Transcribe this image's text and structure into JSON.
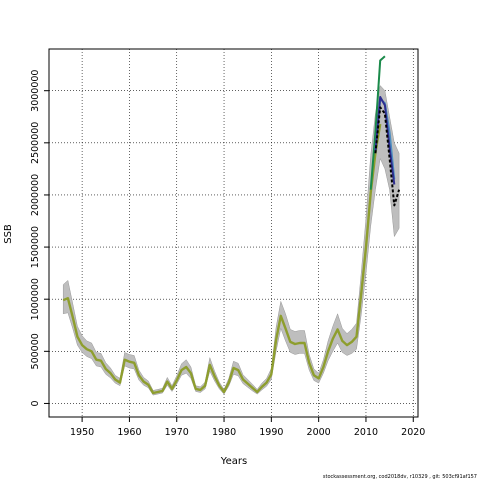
{
  "chart_data": {
    "type": "line",
    "title": "",
    "xlabel": "Years",
    "ylabel": "SSB",
    "xlim": [
      1943,
      2021
    ],
    "ylim": [
      -130000,
      3400000
    ],
    "x_ticks": [
      1950,
      1960,
      1970,
      1980,
      1990,
      2000,
      2010,
      2020
    ],
    "x_tick_labels": [
      "1950",
      "1960",
      "1970",
      "1980",
      "1990",
      "2000",
      "2010",
      "2020"
    ],
    "y_ticks": [
      0,
      500000,
      1000000,
      1500000,
      2000000,
      2500000,
      3000000
    ],
    "y_tick_labels": [
      "0",
      "500000",
      "1000000",
      "1500000",
      "2000000",
      "2500000",
      "3000000"
    ],
    "grid": true,
    "footnote": "stockassessment.org, cod2018dv, r10329 , git: 503cf91af157",
    "series": [
      {
        "color": "#8e9e2e",
        "x": [
          1946,
          1947,
          1948,
          1949,
          1950,
          1951,
          1952,
          1953,
          1954,
          1955,
          1956,
          1957,
          1958,
          1959,
          1960,
          1961,
          1962,
          1963,
          1964,
          1965,
          1966,
          1967,
          1968,
          1969,
          1970,
          1971,
          1972,
          1973,
          1974,
          1975,
          1976,
          1977,
          1978,
          1979,
          1980,
          1981,
          1982,
          1983,
          1984,
          1985,
          1986,
          1987,
          1988,
          1989,
          1990,
          1991,
          1992,
          1993,
          1994,
          1995,
          1996,
          1997,
          1998,
          1999,
          2000,
          2001,
          2002,
          2003,
          2004,
          2005,
          2006,
          2007,
          2008,
          2009,
          2010,
          2011,
          2012,
          2013
        ],
        "y": [
          990000,
          1010000,
          830000,
          640000,
          560000,
          520000,
          500000,
          420000,
          410000,
          330000,
          290000,
          230000,
          200000,
          420000,
          400000,
          390000,
          270000,
          210000,
          180000,
          100000,
          110000,
          120000,
          210000,
          140000,
          220000,
          320000,
          350000,
          290000,
          140000,
          130000,
          170000,
          370000,
          260000,
          170000,
          110000,
          200000,
          340000,
          320000,
          230000,
          190000,
          150000,
          110000,
          160000,
          200000,
          280000,
          610000,
          840000,
          720000,
          590000,
          570000,
          580000,
          580000,
          390000,
          270000,
          240000,
          350000,
          500000,
          620000,
          710000,
          600000,
          560000,
          590000,
          640000,
          1050000,
          1500000,
          2020000,
          2400000,
          2680000
        ]
      },
      {
        "color": "#1a8a4a",
        "x": [
          2011,
          2012,
          2013,
          2014
        ],
        "y": [
          2050000,
          2600000,
          3290000,
          3330000
        ]
      },
      {
        "color": "#4f8fc0",
        "x": [
          2012,
          2013,
          2014,
          2015,
          2016
        ],
        "y": [
          2430000,
          2920000,
          2880000,
          2600000,
          2150000
        ]
      },
      {
        "color": "#2d2d8f",
        "x": [
          2012,
          2013,
          2014,
          2015,
          2016
        ],
        "y": [
          2400000,
          2940000,
          2860000,
          2450000,
          2100000
        ]
      },
      {
        "color": "#000000",
        "x": [
          2012,
          2013,
          2014,
          2015,
          2016,
          2017
        ],
        "y": [
          2400000,
          2840000,
          2780000,
          2350000,
          1900000,
          2050000
        ]
      }
    ],
    "band": {
      "color": "#bebebe",
      "x": [
        1946,
        1947,
        1948,
        1949,
        1950,
        1951,
        1952,
        1953,
        1954,
        1955,
        1956,
        1957,
        1958,
        1959,
        1960,
        1961,
        1962,
        1963,
        1964,
        1965,
        1966,
        1967,
        1968,
        1969,
        1970,
        1971,
        1972,
        1973,
        1974,
        1975,
        1976,
        1977,
        1978,
        1979,
        1980,
        1981,
        1982,
        1983,
        1984,
        1985,
        1986,
        1987,
        1988,
        1989,
        1990,
        1991,
        1992,
        1993,
        1994,
        1995,
        1996,
        1997,
        1998,
        1999,
        2000,
        2001,
        2002,
        2003,
        2004,
        2005,
        2006,
        2007,
        2008,
        2009,
        2010,
        2011,
        2012,
        2013,
        2014,
        2015,
        2016,
        2017
      ],
      "lower": [
        860000,
        870000,
        720000,
        560000,
        490000,
        450000,
        430000,
        360000,
        350000,
        280000,
        245000,
        195000,
        170000,
        360000,
        340000,
        330000,
        225000,
        175000,
        150000,
        80000,
        90000,
        100000,
        175000,
        115000,
        185000,
        270000,
        290000,
        240000,
        115000,
        105000,
        140000,
        310000,
        215000,
        140000,
        90000,
        165000,
        280000,
        265000,
        190000,
        155000,
        120000,
        90000,
        130000,
        165000,
        230000,
        500000,
        720000,
        600000,
        490000,
        470000,
        480000,
        480000,
        320000,
        220000,
        195000,
        290000,
        410000,
        500000,
        580000,
        490000,
        460000,
        480000,
        520000,
        850000,
        1250000,
        1700000,
        2050000,
        2350000,
        2250000,
        2050000,
        1600000,
        1680000
      ],
      "upper": [
        1140000,
        1180000,
        960000,
        740000,
        650000,
        600000,
        580000,
        490000,
        480000,
        390000,
        340000,
        270000,
        240000,
        490000,
        470000,
        460000,
        320000,
        250000,
        215000,
        125000,
        135000,
        145000,
        250000,
        170000,
        265000,
        380000,
        420000,
        350000,
        170000,
        160000,
        205000,
        440000,
        310000,
        205000,
        135000,
        240000,
        405000,
        385000,
        275000,
        230000,
        185000,
        135000,
        195000,
        240000,
        335000,
        730000,
        980000,
        860000,
        710000,
        690000,
        700000,
        700000,
        470000,
        330000,
        290000,
        420000,
        600000,
        740000,
        860000,
        720000,
        670000,
        710000,
        770000,
        1250000,
        1780000,
        2380000,
        2780000,
        3050000,
        3000000,
        2750000,
        2500000,
        2400000
      ]
    }
  }
}
